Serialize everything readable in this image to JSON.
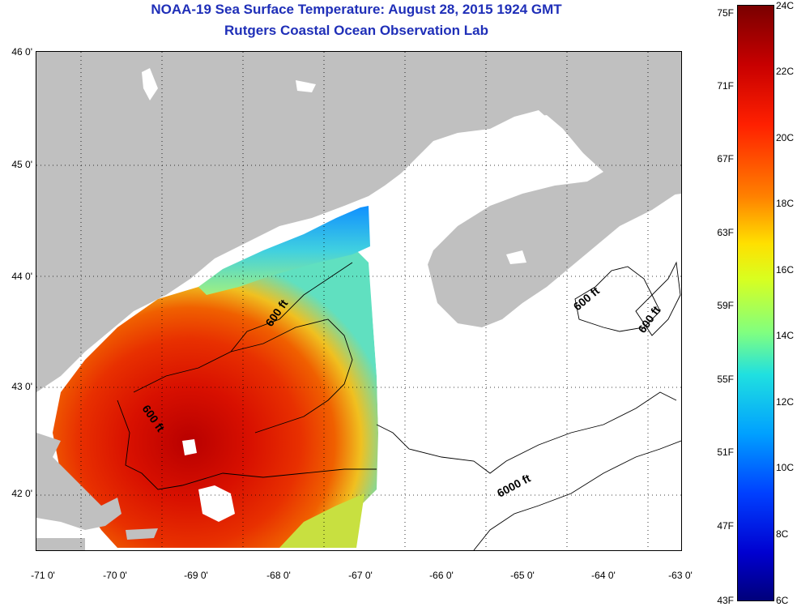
{
  "title_line1": "NOAA-19 Sea Surface Temperature:  August 28, 2015 1924 GMT",
  "title_line2": "Rutgers Coastal Ocean Observation Lab",
  "lat_labels": [
    "46 0'",
    "45 0'",
    "44 0'",
    "43 0'",
    "42 0'"
  ],
  "lon_labels": [
    "-71 0'",
    "-70 0'",
    "-69 0'",
    "-68 0'",
    "-67 0'",
    "-66 0'",
    "-65 0'",
    "-64 0'",
    "-63 0'"
  ],
  "colorbar_f": [
    "75F",
    "71F",
    "67F",
    "63F",
    "59F",
    "55F",
    "51F",
    "47F",
    "43F"
  ],
  "colorbar_c": [
    "24C",
    "22C",
    "20C",
    "18C",
    "16C",
    "14C",
    "12C",
    "10C",
    "8C",
    "6C"
  ],
  "contour_labels": [
    "600 ft",
    "600 ft",
    "600 ft",
    "600 ft",
    "6000 ft"
  ],
  "colors": {
    "title": "#1f2fb8",
    "land": "#c0c0c0",
    "ocean_nodata": "#ffffff"
  }
}
